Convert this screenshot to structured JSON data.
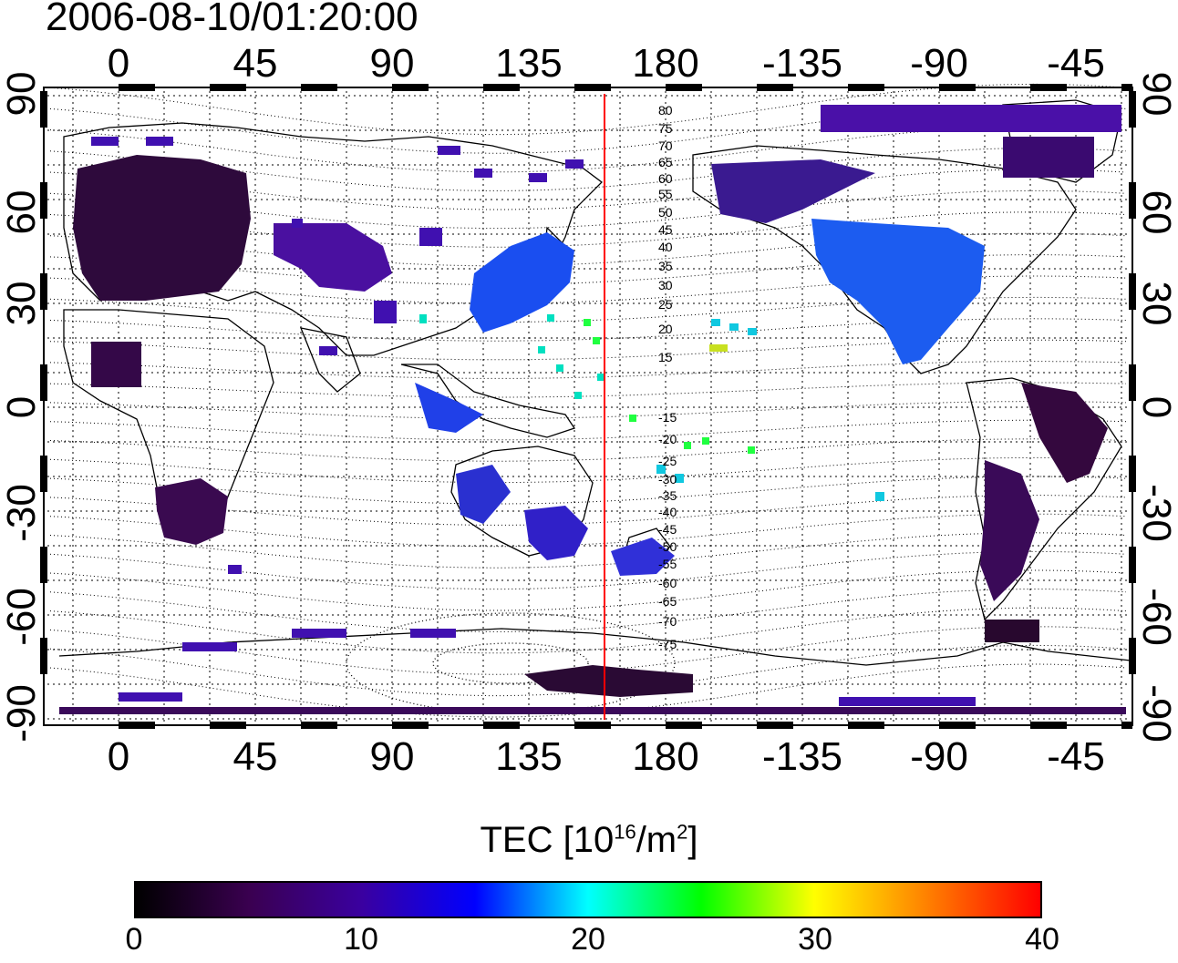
{
  "timestamp": "2006-08-10/01:20:00",
  "map": {
    "top_lon_labels": [
      "0",
      "45",
      "90",
      "135",
      "180",
      "-135",
      "-90",
      "-45"
    ],
    "bottom_lon_labels": [
      "0",
      "45",
      "90",
      "135",
      "180",
      "-135",
      "-90",
      "-45"
    ],
    "left_lat_labels": [
      "90",
      "60",
      "30",
      "0",
      "-30",
      "-60",
      "-90"
    ],
    "right_lat_labels": [
      "90",
      "60",
      "30",
      "0",
      "-30",
      "-60",
      "-90"
    ],
    "magnetic_lat_labels": [
      "80",
      "75",
      "70",
      "65",
      "60",
      "55",
      "50",
      "45",
      "40",
      "35",
      "30",
      "25",
      "20",
      "15",
      "-15",
      "-20",
      "-25",
      "-30",
      "-35",
      "-40",
      "-45",
      "-50",
      "-55",
      "-60",
      "-65",
      "-70",
      "-75"
    ],
    "terminator_color": "#ff0000"
  },
  "colorbar": {
    "title_main": "TEC  [10",
    "title_sup1": "16",
    "title_mid": "/m",
    "title_sup2": "2",
    "title_end": "]",
    "min": 0,
    "max": 40,
    "ticks": [
      "0",
      "10",
      "20",
      "30",
      "40"
    ],
    "colors": [
      "#000000",
      "#3a0050",
      "#3a00a0",
      "#0000ff",
      "#00ffff",
      "#00ff00",
      "#ffff00",
      "#ff8000",
      "#ff0000"
    ]
  }
}
